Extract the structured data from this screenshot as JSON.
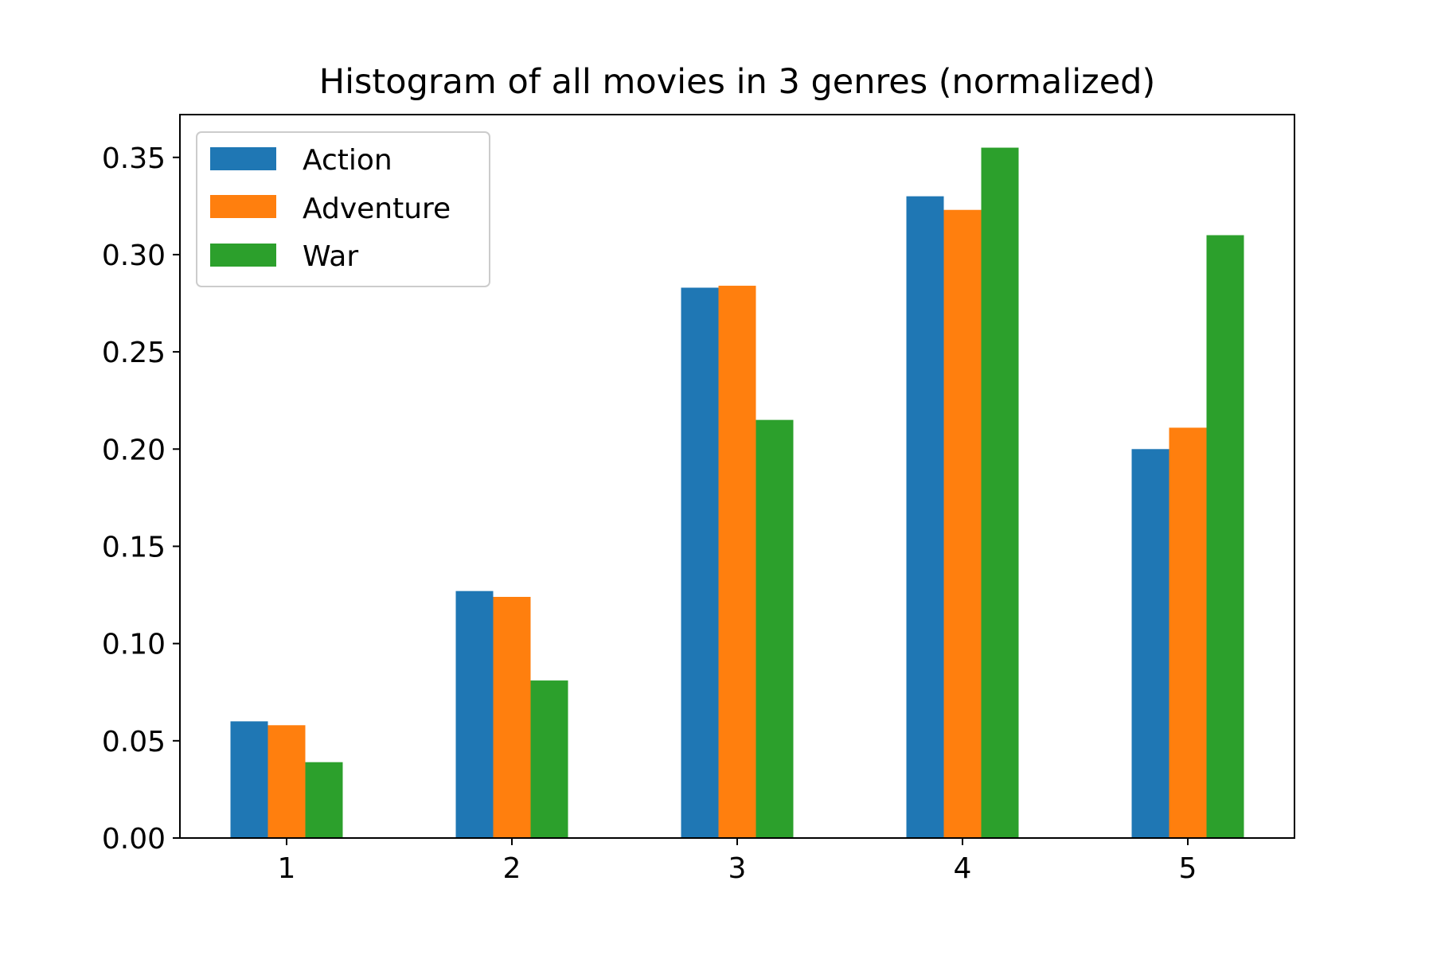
{
  "chart_data": {
    "type": "bar",
    "title": "Histogram of all movies in 3 genres (normalized)",
    "xlabel": "",
    "ylabel": "",
    "categories": [
      "1",
      "2",
      "3",
      "4",
      "5"
    ],
    "series": [
      {
        "name": "Action",
        "color": "#1f77b4",
        "values": [
          0.06,
          0.127,
          0.283,
          0.33,
          0.2
        ]
      },
      {
        "name": "Adventure",
        "color": "#ff7f0e",
        "values": [
          0.058,
          0.124,
          0.284,
          0.323,
          0.211
        ]
      },
      {
        "name": "War",
        "color": "#2ca02c",
        "values": [
          0.039,
          0.081,
          0.215,
          0.355,
          0.31
        ]
      }
    ],
    "ylim": [
      0,
      0.372
    ],
    "yticks": [
      "0.00",
      "0.05",
      "0.10",
      "0.15",
      "0.20",
      "0.25",
      "0.30",
      "0.35"
    ],
    "grid": false,
    "legend_position": "top-left"
  }
}
